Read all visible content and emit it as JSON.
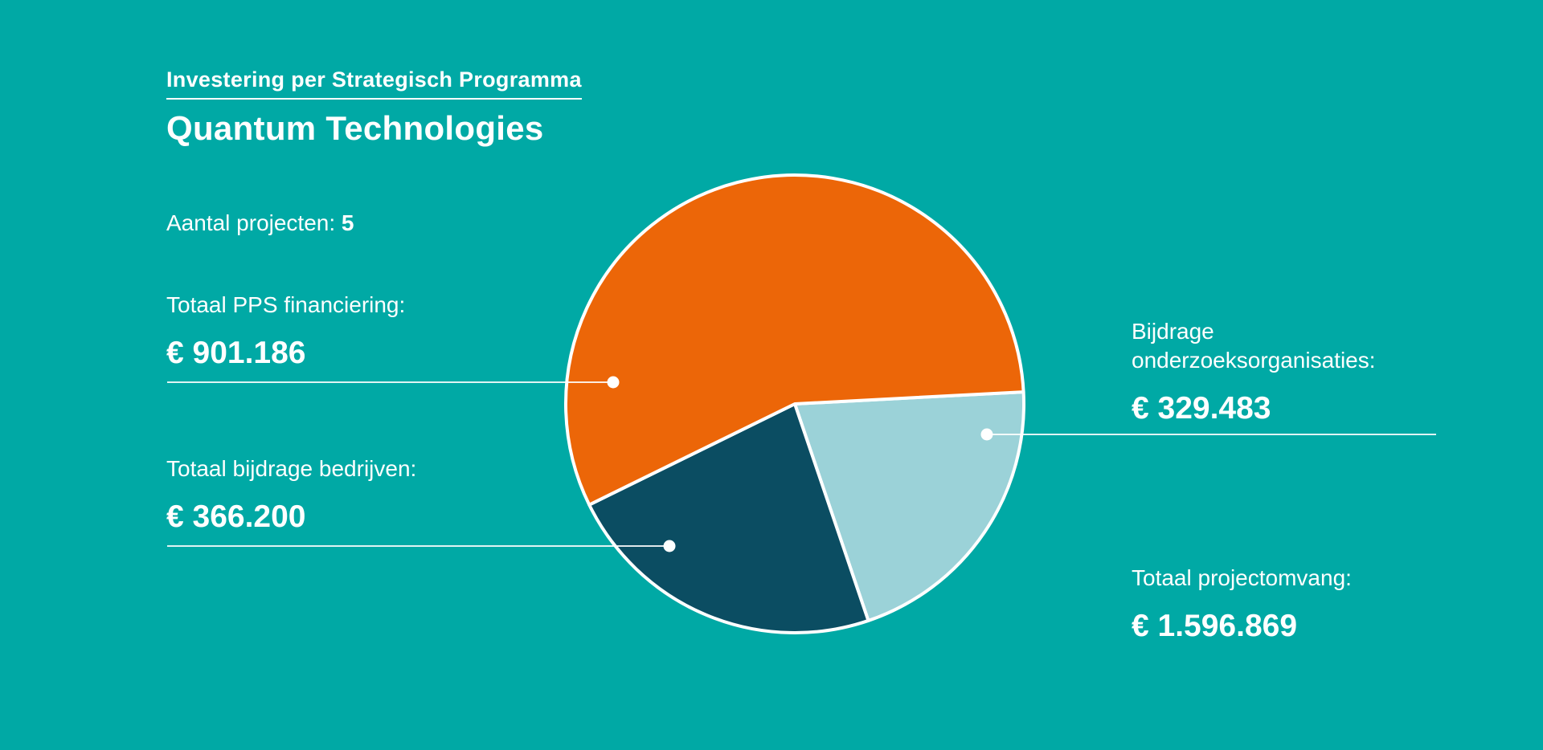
{
  "background_color": "#00a9a5",
  "accent_white": "#ffffff",
  "header": {
    "eyebrow": "Investering per Strategisch Programma",
    "title": "Quantum Technologies"
  },
  "stats": {
    "projects_label": "Aantal projecten:",
    "projects_value": "5",
    "pps_label": "Totaal PPS financiering:",
    "pps_value": "€ 901.186",
    "bedrijven_label": "Totaal bijdrage bedrijven:",
    "bedrijven_value": "€ 366.200",
    "onderzoek_label_line1": "Bijdrage",
    "onderzoek_label_line2": "onderzoeksorganisaties:",
    "onderzoek_value": "€ 329.483",
    "totaal_label": "Totaal projectomvang:",
    "totaal_value": "€ 1.596.869"
  },
  "chart_data": {
    "type": "pie",
    "title": "Investering per Strategisch Programma — Quantum Technologies",
    "projects_count": 5,
    "slices": [
      {
        "label": "Totaal PPS financiering",
        "value": 901186,
        "display": "€ 901.186",
        "color": "#ec6608",
        "percent": 56.4
      },
      {
        "label": "Totaal bijdrage bedrijven",
        "value": 366200,
        "display": "€ 366.200",
        "color": "#0b4d62",
        "percent": 22.9
      },
      {
        "label": "Bijdrage onderzoeksorganisaties",
        "value": 329483,
        "display": "€ 329.483",
        "color": "#9bd2d8",
        "percent": 20.6
      }
    ],
    "total": {
      "label": "Totaal projectomvang",
      "value": 1596869,
      "display": "€ 1.596.869"
    },
    "start_angle_deg": -3,
    "clockwise_draw_order": [
      2,
      1,
      0
    ],
    "legend_position": "callout-labels",
    "grid": false
  }
}
